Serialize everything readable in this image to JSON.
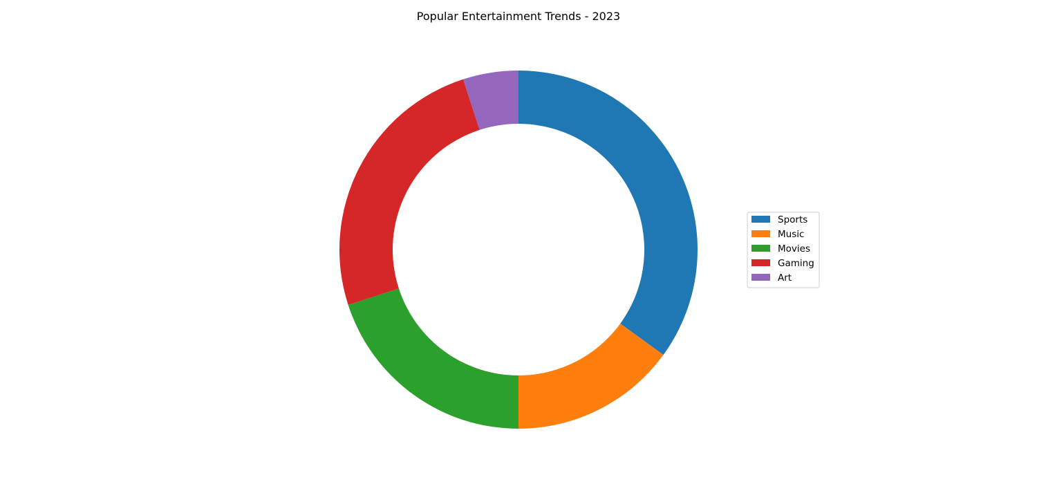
{
  "chart_data": {
    "type": "pie",
    "title": "Popular Entertainment Trends - 2023",
    "categories": [
      "Sports",
      "Music",
      "Movies",
      "Gaming",
      "Art"
    ],
    "values": [
      35,
      15,
      20,
      25,
      5
    ],
    "colors": [
      "#1f77b4",
      "#ff7f0e",
      "#2ca02c",
      "#d62728",
      "#9467bd"
    ],
    "donut": true,
    "legend_position": "center-right"
  }
}
